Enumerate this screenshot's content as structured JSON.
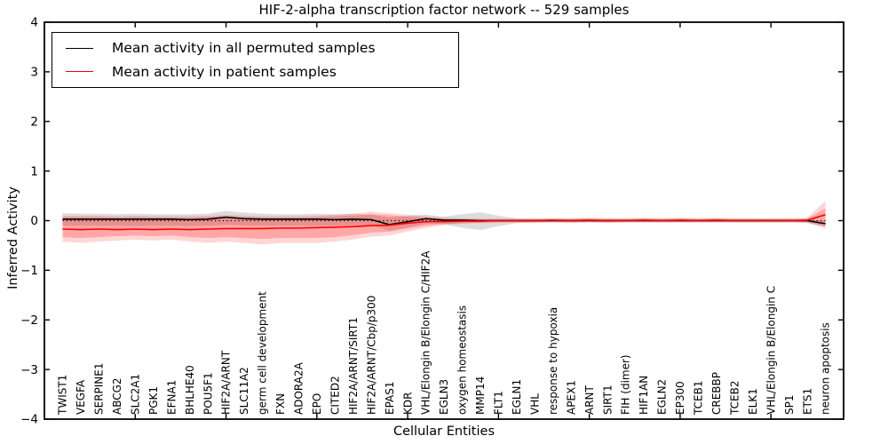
{
  "figure": {
    "title": "HIF-2-alpha transcription factor network -- 529 samples",
    "xlabel": "Cellular Entities",
    "ylabel": "Inferred Activity"
  },
  "legend": {
    "items": [
      {
        "label": "Mean activity in all permuted samples",
        "color": "#000000"
      },
      {
        "label": "Mean activity in patient samples",
        "color": "#ff0000"
      }
    ]
  },
  "chart_data": {
    "type": "line",
    "title": "HIF-2-alpha transcription factor network -- 529 samples",
    "xlabel": "Cellular Entities",
    "ylabel": "Inferred Activity",
    "xlim": [
      0,
      44
    ],
    "ylim": [
      -4,
      4
    ],
    "yticks": [
      -4,
      -3,
      -2,
      -1,
      0,
      1,
      2,
      3,
      4
    ],
    "xtick_positions": [
      5,
      10,
      15,
      20,
      25,
      30,
      35,
      40
    ],
    "grid": false,
    "zero_reference_line": 0,
    "legend_position": "upper left",
    "categories": [
      "TWIST1",
      "VEGFA",
      "SERPINE1",
      "ABCG2",
      "SLC2A1",
      "PGK1",
      "EFNA1",
      "BHLHE40",
      "POU5F1",
      "HIF2A/ARNT",
      "SLC11A2",
      "germ cell development",
      "FXN",
      "ADORA2A",
      "EPO",
      "CITED2",
      "HIF2A/ARNT/SIRT1",
      "HIF2A/ARNT/Cbp/p300",
      "EPAS1",
      "KDR",
      "VHL/Elongin B/Elongin C/HIF2A",
      "EGLN3",
      "oxygen homeostasis",
      "MMP14",
      "FLT1",
      "EGLN1",
      "VHL",
      "response to hypoxia",
      "APEX1",
      "ARNT",
      "SIRT1",
      "FIH (dimer)",
      "HIF1AN",
      "EGLN2",
      "EP300",
      "TCEB1",
      "CREBBP",
      "TCEB2",
      "ELK1",
      "VHL/Elongin B/Elongin C",
      "SP1",
      "ETS1",
      "neuron apoptosis"
    ],
    "series": [
      {
        "name": "Mean activity in all permuted samples",
        "color": "#000000",
        "values": [
          0.03,
          0.03,
          0.03,
          0.03,
          0.03,
          0.03,
          0.03,
          0.02,
          0.03,
          0.07,
          0.04,
          0.03,
          0.03,
          0.03,
          0.03,
          0.02,
          0.03,
          0.02,
          -0.08,
          -0.02,
          0.04,
          0.01,
          0.01,
          0,
          0,
          0,
          0,
          0,
          0,
          0,
          0,
          0,
          0,
          0,
          0,
          0,
          0,
          0,
          0,
          0,
          0,
          0,
          -0.06
        ]
      },
      {
        "name": "Mean activity in patient samples",
        "color": "#ff0000",
        "values": [
          -0.17,
          -0.18,
          -0.17,
          -0.18,
          -0.17,
          -0.18,
          -0.17,
          -0.18,
          -0.17,
          -0.16,
          -0.16,
          -0.16,
          -0.15,
          -0.15,
          -0.14,
          -0.13,
          -0.12,
          -0.1,
          -0.09,
          -0.05,
          -0.02,
          -0.02,
          -0.01,
          -0.01,
          0,
          0,
          0,
          0.01,
          0,
          0.01,
          0,
          0,
          0.01,
          0,
          0.01,
          0,
          0.01,
          0,
          0,
          0,
          0,
          0.01,
          0.12
        ]
      }
    ],
    "bands": [
      {
        "name": "permuted-samples-range",
        "color": "rgba(120,120,120,0.25)",
        "upper": [
          0.15,
          0.14,
          0.14,
          0.13,
          0.14,
          0.13,
          0.13,
          0.13,
          0.14,
          0.2,
          0.16,
          0.14,
          0.13,
          0.13,
          0.14,
          0.13,
          0.14,
          0.12,
          0.06,
          0.1,
          0.12,
          0.08,
          0.13,
          0.17,
          0.1,
          0.05,
          0.04,
          0.04,
          0.04,
          0.04,
          0.04,
          0.04,
          0.04,
          0.04,
          0.04,
          0.04,
          0.04,
          0.04,
          0.04,
          0.04,
          0.04,
          0.03,
          0.0
        ],
        "lower": [
          -0.1,
          -0.1,
          -0.1,
          -0.1,
          -0.11,
          -0.1,
          -0.1,
          -0.11,
          -0.1,
          -0.08,
          -0.1,
          -0.1,
          -0.1,
          -0.1,
          -0.1,
          -0.1,
          -0.09,
          -0.09,
          -0.2,
          -0.13,
          -0.06,
          -0.07,
          -0.14,
          -0.19,
          -0.11,
          -0.05,
          -0.04,
          -0.04,
          -0.04,
          -0.04,
          -0.04,
          -0.04,
          -0.04,
          -0.04,
          -0.04,
          -0.04,
          -0.04,
          -0.04,
          -0.04,
          -0.04,
          -0.04,
          -0.05,
          -0.13
        ]
      },
      {
        "name": "patient-samples-range-outer",
        "color": "rgba(255,0,0,0.16)",
        "upper": [
          0.1,
          0.1,
          0.1,
          0.09,
          0.1,
          0.09,
          0.09,
          0.09,
          0.1,
          0.12,
          0.1,
          0.09,
          0.09,
          0.09,
          0.1,
          0.12,
          0.14,
          0.18,
          0.15,
          0.12,
          0.09,
          0.06,
          0.05,
          0.04,
          0.04,
          0.04,
          0.04,
          0.05,
          0.05,
          0.06,
          0.05,
          0.05,
          0.06,
          0.05,
          0.06,
          0.05,
          0.06,
          0.05,
          0.05,
          0.05,
          0.05,
          0.06,
          0.4
        ],
        "lower": [
          -0.42,
          -0.45,
          -0.42,
          -0.4,
          -0.38,
          -0.4,
          -0.38,
          -0.42,
          -0.45,
          -0.42,
          -0.45,
          -0.48,
          -0.45,
          -0.45,
          -0.45,
          -0.42,
          -0.38,
          -0.32,
          -0.3,
          -0.22,
          -0.14,
          -0.09,
          -0.06,
          -0.05,
          -0.04,
          -0.04,
          -0.04,
          -0.03,
          -0.04,
          -0.03,
          -0.04,
          -0.03,
          -0.03,
          -0.03,
          -0.03,
          -0.03,
          -0.03,
          -0.03,
          -0.03,
          -0.03,
          -0.03,
          -0.04,
          -0.15
        ]
      },
      {
        "name": "patient-samples-range-inner",
        "color": "rgba(255,0,0,0.22)",
        "upper": [
          0.07,
          0.07,
          0.07,
          0.06,
          0.07,
          0.06,
          0.06,
          0.06,
          0.07,
          0.08,
          0.07,
          0.06,
          0.06,
          0.06,
          0.07,
          0.09,
          0.1,
          0.13,
          0.11,
          0.08,
          0.06,
          0.04,
          0.03,
          0.03,
          0.03,
          0.03,
          0.03,
          0.03,
          0.03,
          0.04,
          0.03,
          0.03,
          0.04,
          0.03,
          0.04,
          0.03,
          0.04,
          0.03,
          0.03,
          0.03,
          0.03,
          0.04,
          0.25
        ],
        "lower": [
          -0.33,
          -0.35,
          -0.33,
          -0.31,
          -0.3,
          -0.31,
          -0.3,
          -0.33,
          -0.35,
          -0.33,
          -0.35,
          -0.37,
          -0.35,
          -0.35,
          -0.35,
          -0.33,
          -0.29,
          -0.24,
          -0.22,
          -0.16,
          -0.1,
          -0.07,
          -0.05,
          -0.04,
          -0.03,
          -0.03,
          -0.03,
          -0.02,
          -0.03,
          -0.02,
          -0.03,
          -0.02,
          -0.02,
          -0.02,
          -0.02,
          -0.02,
          -0.02,
          -0.02,
          -0.02,
          -0.02,
          -0.02,
          -0.03,
          -0.1
        ]
      }
    ]
  }
}
